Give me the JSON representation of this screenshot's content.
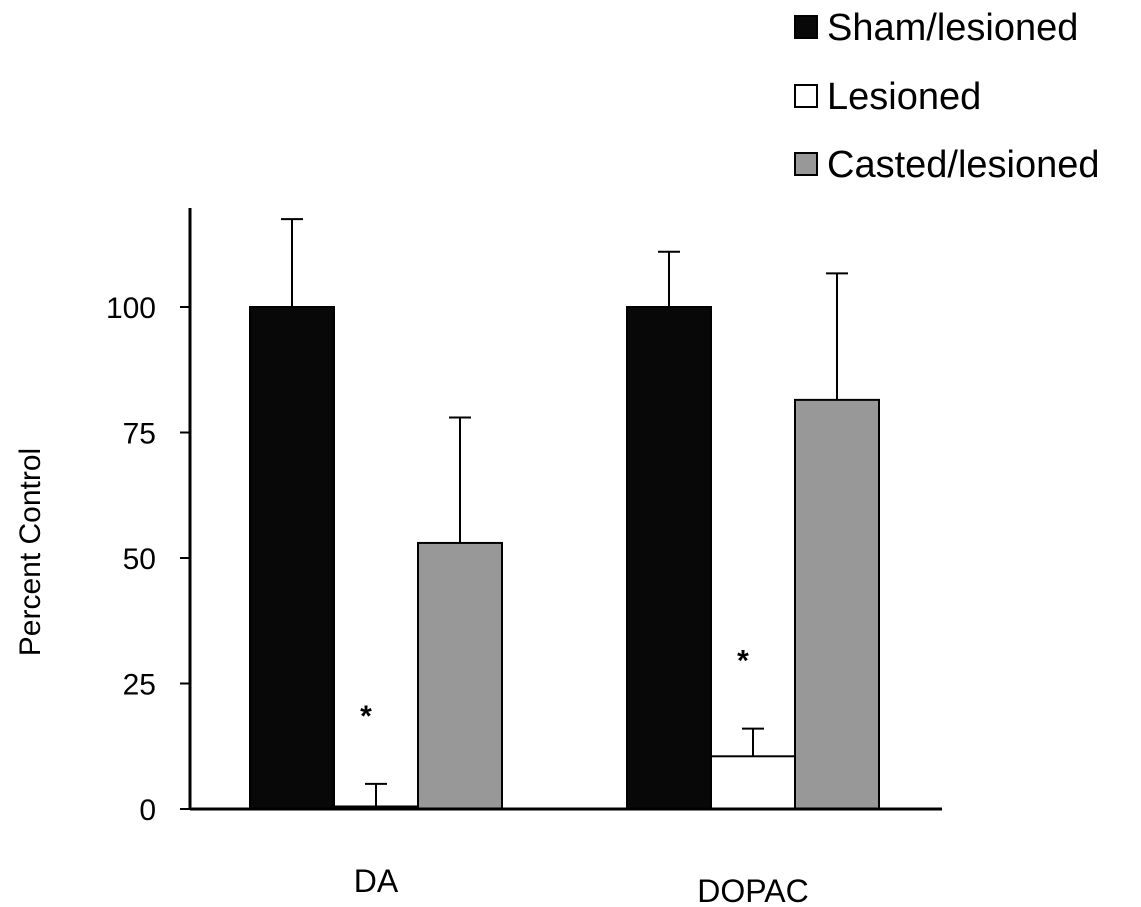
{
  "chart_data": {
    "type": "bar",
    "categories": [
      "DA",
      "DOPAC"
    ],
    "series": [
      {
        "name": "Sham/lesioned",
        "color": "#080808",
        "values": [
          100,
          100
        ],
        "errors": [
          17.5,
          11
        ],
        "significance": [
          "",
          ""
        ]
      },
      {
        "name": "Lesioned",
        "color": "#ffffff",
        "values": [
          0.5,
          10.5
        ],
        "errors": [
          4.5,
          5.5
        ],
        "significance": [
          "*",
          "*"
        ]
      },
      {
        "name": "Casted/lesioned",
        "color": "#989898",
        "values": [
          53,
          81.5
        ],
        "errors": [
          25,
          25.2
        ],
        "significance": [
          "",
          ""
        ]
      }
    ],
    "title": "",
    "xlabel": "",
    "ylabel": "Percent Control",
    "ylim": [
      0,
      120
    ],
    "yticks": [
      0,
      25,
      50,
      75,
      100
    ],
    "ytick_labels": [
      "0",
      "25",
      "50",
      "75",
      "100"
    ],
    "grid": false,
    "legend_position": "top-right"
  }
}
